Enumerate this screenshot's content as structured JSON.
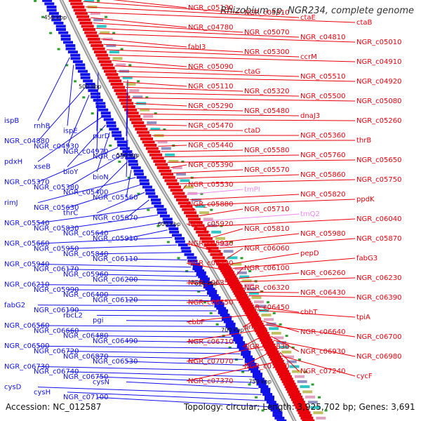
{
  "title": "Rhizobium sp. NGR234, complete genome",
  "accession": "Accession: NC_012587",
  "summary": "Topology: circular; Length: 3,925,702 bp; Genes: 3,691",
  "colors": {
    "forward": "#e8000b",
    "reverse": "#1010e8",
    "backbone": "#888888",
    "rna": "#ee88ee"
  },
  "kbp_marks": [
    "450 kbp",
    "500 kbp",
    "550 kbp",
    "600 kbp",
    "650 kbp",
    "700 kbp",
    "750 kbp"
  ],
  "left_labels": [
    "ispB",
    "rnhB",
    "ispE",
    "purD",
    "NGR_c04880",
    "NGR_c04930",
    "NGR_c04970",
    "NGR_c05220",
    "pdxH",
    "xseB",
    "bioY",
    "bioN",
    "NGR_c05370",
    "NGR_c05380",
    "NGR_c05400",
    "NGR_c05560",
    "rimJ",
    "NGR_c05630",
    "thrC",
    "NGR_c05670",
    "NGR_c05540",
    "NGR_c05830",
    "NGR_c05640",
    "NGR_c05910",
    "NGR_c05660",
    "NGR_c05950",
    "NGR_c05840",
    "NGR_c06110",
    "NGR_c05940",
    "NGR_c06170",
    "NGR_c05960",
    "NGR_c06200",
    "NGR_c06210",
    "NGR_c05990",
    "NGR_c06400",
    "NGR_c06120",
    "fabG2",
    "NGR_c06190",
    "rbcL2",
    "pgi",
    "NGR_c06560",
    "NGR_c06660",
    "NGR_c06480",
    "NGR_c06490",
    "NGR_c06500",
    "NGR_c06720",
    "NGR_c06870",
    "NGR_c06530",
    "NGR_c06730",
    "NGR_c06740",
    "NGR_c06750",
    "cysN",
    "cysD",
    "cysH",
    "NGR_c07100"
  ],
  "right_labels": [
    "NGR_c05130",
    "NGR_c05310",
    "ctaE",
    "ctaB",
    "NGR_c04780",
    "NGR_c05070",
    "NGR_c04810",
    "NGR_c05010",
    "fabI3",
    "NGR_c05300",
    "ccrM",
    "NGR_c04910",
    "NGR_c05090",
    "ctaG",
    "NGR_c05510",
    "NGR_c04920",
    "NGR_c05110",
    "NGR_c05320",
    "NGR_c05500",
    "NGR_c05080",
    "NGR_c05290",
    "NGR_c05480",
    "dnaJ3",
    "NGR_c05260",
    "NGR_c05470",
    "ctaD",
    "NGR_c05360",
    "thrB",
    "NGR_c05440",
    "NGR_c05580",
    "NGR_c05760",
    "NGR_c05650",
    "NGR_c05390",
    "NGR_c05570",
    "NGR_c05860",
    "NGR_c05750",
    "NGR_c05530",
    "tmPI",
    "NGR_c05820",
    "ppdK",
    "NGR_c05880",
    "NGR_c05710",
    "tmQ2",
    "NGR_c06040",
    "NGR_c05920",
    "NGR_c05810",
    "NGR_c05980",
    "NGR_c05870",
    "NGR_c05930",
    "NGR_c06060",
    "pepD",
    "fabG3",
    "NGR_c06220",
    "NGR_c06100",
    "NGR_c06260",
    "NGR_c06230",
    "NGR_c06350",
    "NGR_c06320",
    "NGR_c06430",
    "NGR_c06390",
    "NGR_c06550",
    "NGR_c06450",
    "cbbT",
    "tpiA",
    "cbbF",
    "pntA",
    "NGR_c06640",
    "NGR_c06700",
    "NGR_c06710",
    "NGR_c06830",
    "NGR_c06930",
    "NGR_c06980",
    "NGR_c07070",
    "NGR_c07160",
    "NGR_c07240",
    "cycF",
    "NGR_c07370"
  ]
}
